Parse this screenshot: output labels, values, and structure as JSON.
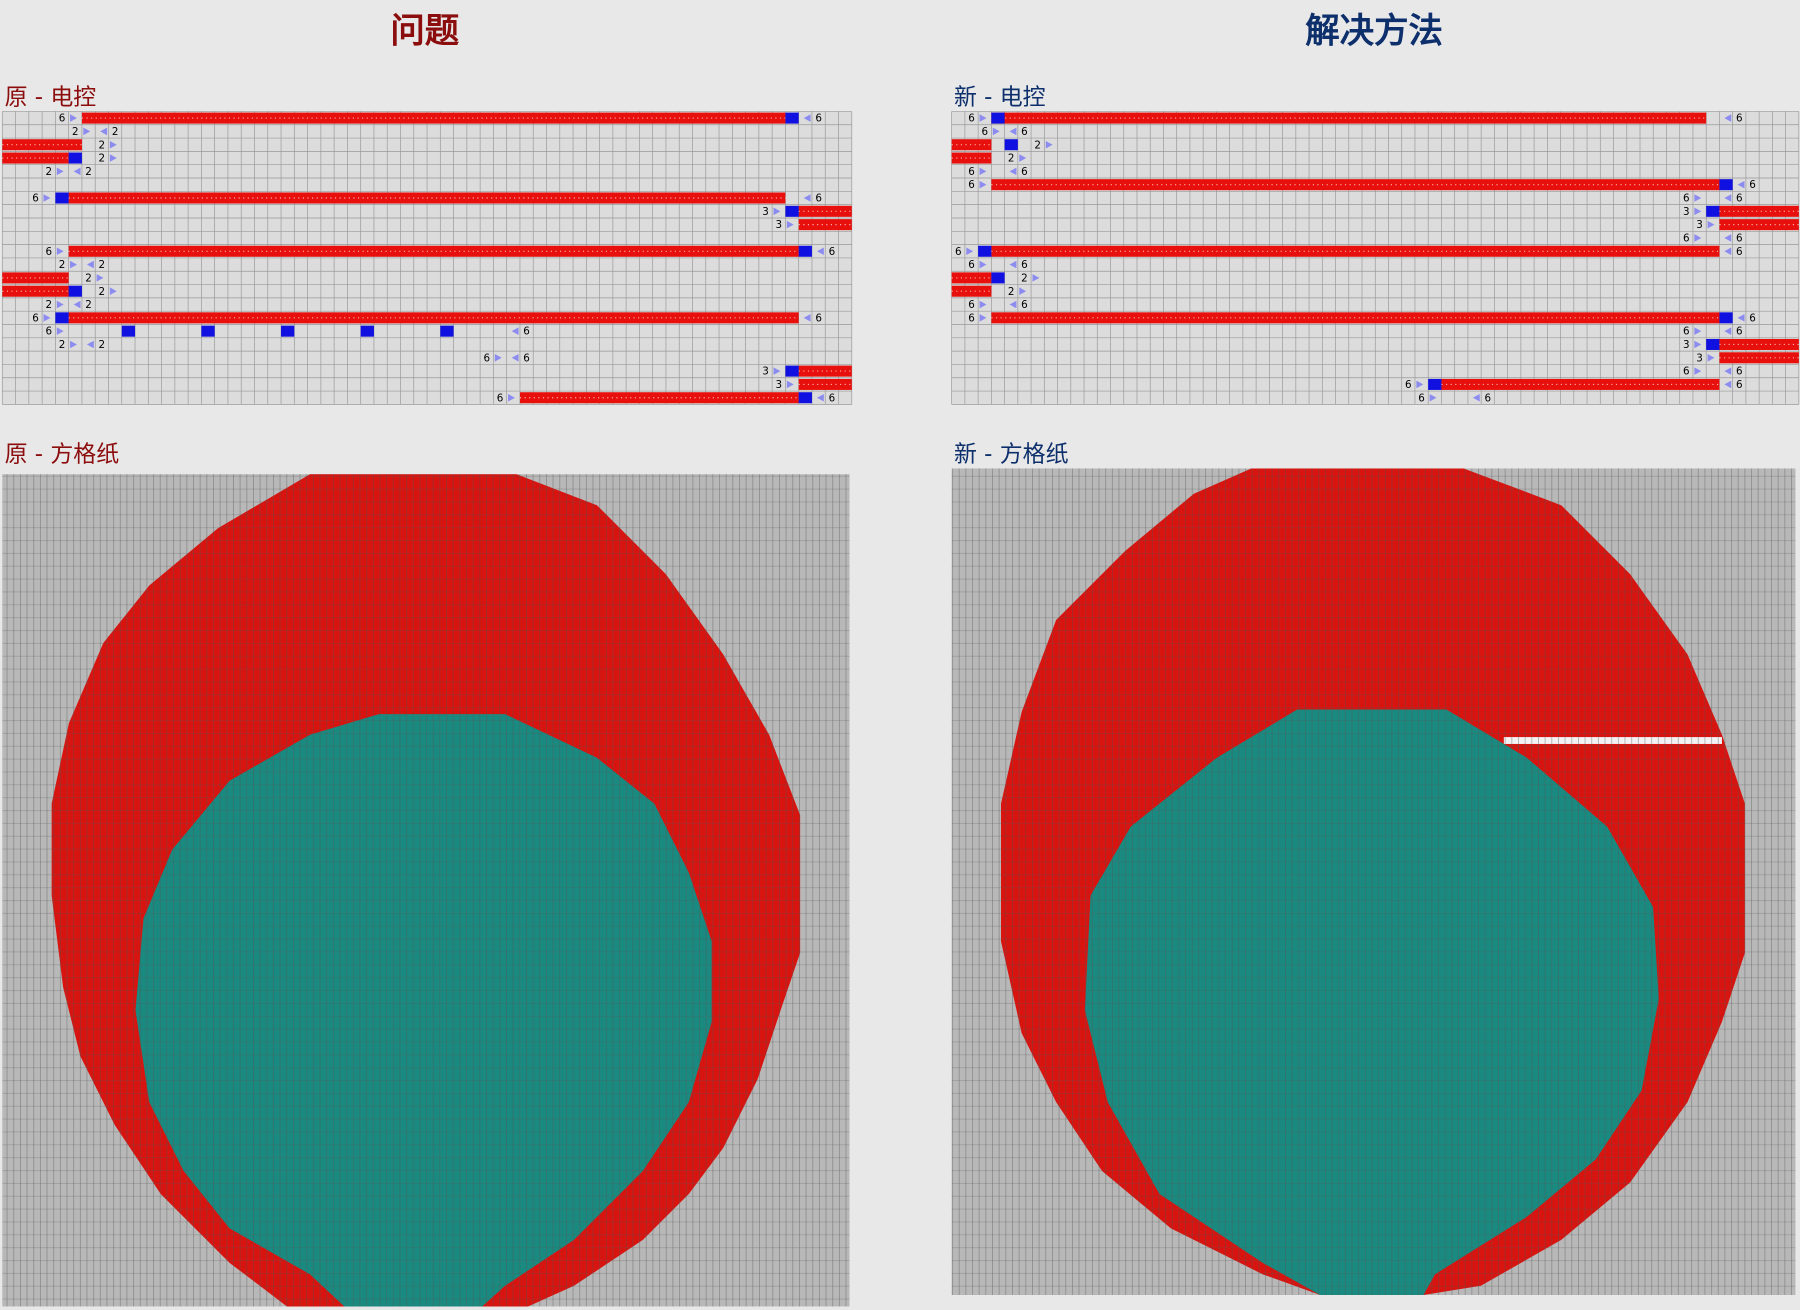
{
  "header": {
    "left_title": "问题",
    "right_title": "解决方法"
  },
  "panels": [
    {
      "control_title": "原 - 电控",
      "grid_title": "原 - 方格纸",
      "control": {
        "rows": [
          [
            "6",
            "6"
          ],
          [
            "2",
            "2"
          ],
          [
            "2"
          ],
          [
            "2"
          ],
          [
            "2",
            "2"
          ],
          [],
          [
            "6",
            "6"
          ],
          [
            "3"
          ],
          [
            "3"
          ],
          [],
          [
            "6",
            "6"
          ],
          [
            "2",
            "2"
          ],
          [
            "2"
          ],
          [
            "2"
          ],
          [
            "2",
            "2"
          ],
          [
            "6",
            "6"
          ],
          [
            "6",
            "6"
          ],
          [
            "2",
            "2"
          ],
          [
            "6",
            "6"
          ],
          [
            "3"
          ],
          [
            "3"
          ],
          [
            "6",
            "6"
          ]
        ]
      }
    },
    {
      "control_title": "新 - 电控",
      "grid_title": "新 - 方格纸",
      "control": {
        "rows": [
          [
            "6",
            "6"
          ],
          [
            "6",
            "6"
          ],
          [
            "2"
          ],
          [
            "2"
          ],
          [
            "6",
            "6"
          ],
          [
            "6",
            "6"
          ],
          [
            "6",
            "6"
          ],
          [
            "3"
          ],
          [
            "3"
          ],
          [
            "6",
            "6"
          ],
          [
            "6",
            "6"
          ],
          [
            "6",
            "6"
          ],
          [
            "2"
          ],
          [
            "2"
          ],
          [
            "6",
            "6"
          ],
          [
            "6",
            "6"
          ],
          [
            "6",
            "6"
          ],
          [
            "3"
          ],
          [
            "3"
          ],
          [
            "6",
            "6"
          ],
          [
            "6",
            "6"
          ],
          [
            "6",
            "6"
          ]
        ]
      }
    }
  ]
}
